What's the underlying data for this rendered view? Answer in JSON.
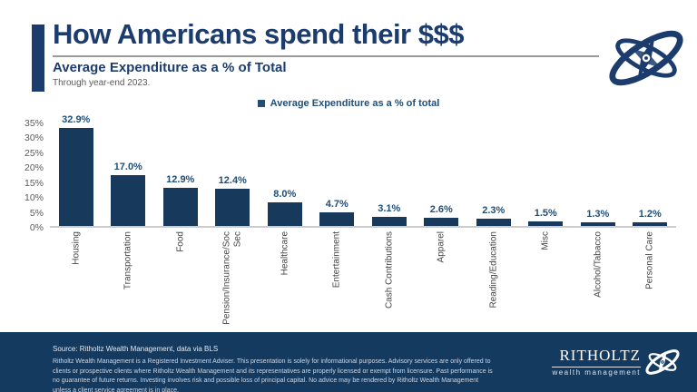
{
  "page": {
    "title": "How Americans spend their $$$",
    "subtitle": "Average Expenditure as a % of Total",
    "date_note": "Through year-end 2023."
  },
  "legend": {
    "label": "Average Expenditure as a % of total"
  },
  "chart_data": {
    "type": "bar",
    "title": "Average Expenditure as a % of Total",
    "categories": [
      "Housing",
      "Transportation",
      "Food",
      "Pension/Insurance/Soc Sec",
      "Healthcare",
      "Entertainment",
      "Cash Contributions",
      "Apparel",
      "Reading/Education",
      "Misc",
      "Alcohol/Tabacco",
      "Personal Care"
    ],
    "values": [
      32.9,
      17.0,
      12.9,
      12.4,
      8.0,
      4.7,
      3.1,
      2.6,
      2.3,
      1.5,
      1.3,
      1.2
    ],
    "value_labels": [
      "32.9%",
      "17.0%",
      "12.9%",
      "12.4%",
      "8.0%",
      "4.7%",
      "3.1%",
      "2.6%",
      "2.3%",
      "1.5%",
      "1.3%",
      "1.2%"
    ],
    "xlabel": "",
    "ylabel": "",
    "ylim": [
      0,
      35
    ],
    "ytick_step": 5,
    "ytick_suffix": "%",
    "grid": false,
    "legend_position": "top",
    "bar_color": "#17395c",
    "value_label_color": "#1f4e79"
  },
  "colors": {
    "brand_navy": "#1c3c6e",
    "bar_navy": "#17395c",
    "label_blue": "#1f4e79",
    "footer_navy": "#153a5f",
    "gray_text": "#595959"
  },
  "footer": {
    "source": "Source: Ritholtz Wealth Management, data via BLS",
    "disclaimer": "Ritholtz Wealth Management is a Registered Investment Adviser. This presentation is solely for informational purposes. Advisory services are only offered to clients or prospective clients where Ritholtz Wealth Management and its representatives are properly licensed or exempt from licensure. Past performance is no guarantee of future returns. Investing involves risk and possible loss of principal capital. No advice may be rendered by Ritholtz Wealth Management unless a client service agreement is in place.",
    "brand_name": "RITHOLTZ",
    "brand_sub": "wealth management"
  }
}
